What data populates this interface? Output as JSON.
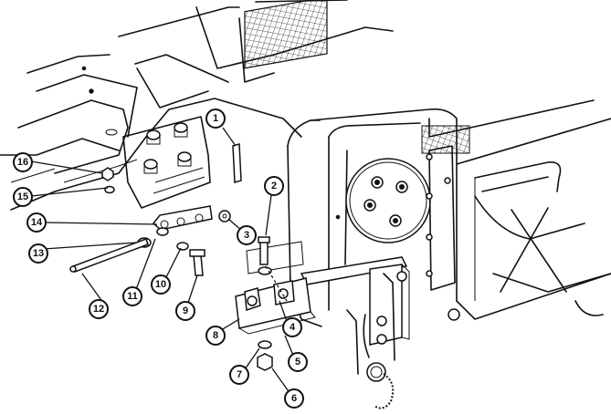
{
  "callouts": [
    {
      "id": "1",
      "label": "1"
    },
    {
      "id": "2",
      "label": "2"
    },
    {
      "id": "3",
      "label": "3"
    },
    {
      "id": "4",
      "label": "4"
    },
    {
      "id": "5",
      "label": "5"
    },
    {
      "id": "6",
      "label": "6"
    },
    {
      "id": "7",
      "label": "7"
    },
    {
      "id": "8",
      "label": "8"
    },
    {
      "id": "9",
      "label": "9"
    },
    {
      "id": "10",
      "label": "10"
    },
    {
      "id": "11",
      "label": "11"
    },
    {
      "id": "12",
      "label": "12"
    },
    {
      "id": "13",
      "label": "13"
    },
    {
      "id": "14",
      "label": "14"
    },
    {
      "id": "15",
      "label": "15"
    },
    {
      "id": "16",
      "label": "16"
    }
  ]
}
